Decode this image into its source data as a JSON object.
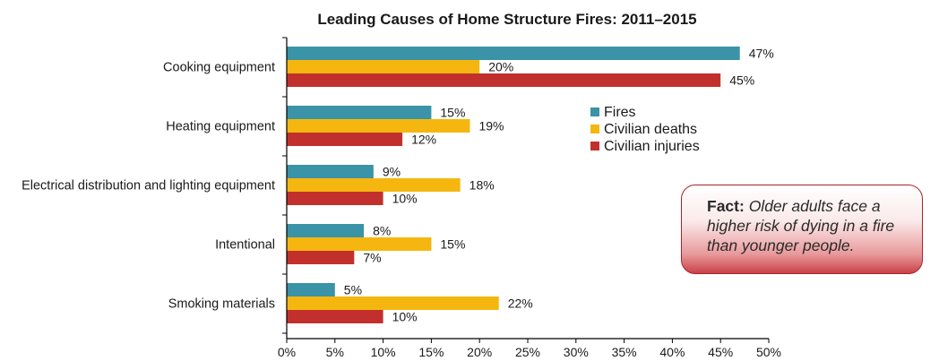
{
  "chart_data": {
    "type": "bar",
    "orientation": "horizontal",
    "title": "Leading Causes of Home Structure Fires: 2011–2015",
    "categories": [
      "Cooking equipment",
      "Heating equipment",
      "Electrical distribution and lighting equipment",
      "Intentional",
      "Smoking materials"
    ],
    "series": [
      {
        "name": "Fires",
        "color": "#3a93a6",
        "values": [
          47,
          15,
          9,
          8,
          5
        ]
      },
      {
        "name": "Civilian deaths",
        "color": "#f5b70f",
        "values": [
          20,
          19,
          18,
          15,
          22
        ]
      },
      {
        "name": "Civilian injuries",
        "color": "#c2302e",
        "values": [
          45,
          12,
          10,
          7,
          10
        ]
      }
    ],
    "value_labels": [
      [
        "47%",
        "20%",
        "45%"
      ],
      [
        "15%",
        "19%",
        "12%"
      ],
      [
        "9%",
        "18%",
        "10%"
      ],
      [
        "8%",
        "15%",
        "7%"
      ],
      [
        "5%",
        "22%",
        "10%"
      ]
    ],
    "xlim": [
      0,
      50
    ],
    "xticks": [
      "0%",
      "5%",
      "10%",
      "15%",
      "20%",
      "25%",
      "30%",
      "35%",
      "40%",
      "45%",
      "50%"
    ],
    "legend_position": "right-center",
    "grid": false
  },
  "fact": {
    "label": "Fact:",
    "text": "Older adults face a higher risk of dying in a fire than younger people."
  }
}
